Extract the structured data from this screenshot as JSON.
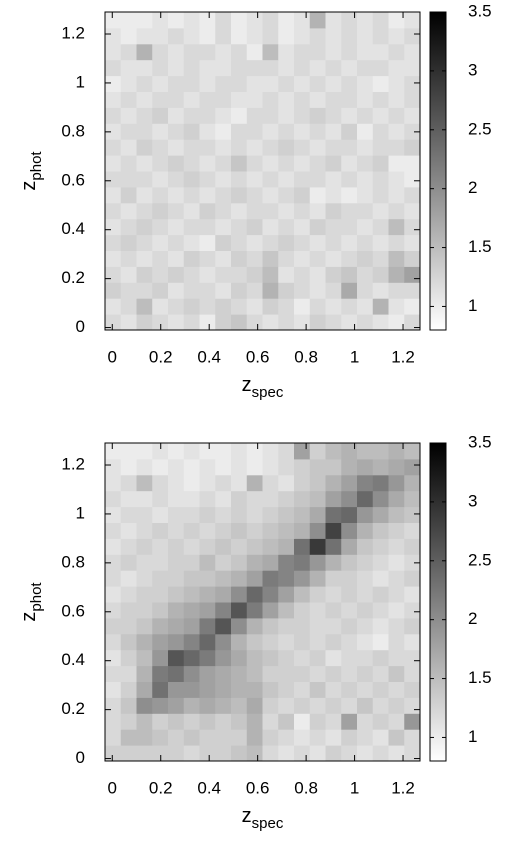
{
  "chart_data": [
    {
      "type": "heatmap",
      "xlabel": {
        "main": "z",
        "sub": "spec"
      },
      "ylabel": {
        "main": "z",
        "sub": "phot"
      },
      "xlim": [
        -0.03,
        1.27
      ],
      "ylim": [
        -0.01,
        1.29
      ],
      "xticks": [
        0,
        0.2,
        0.4,
        0.6,
        0.8,
        1,
        1.2
      ],
      "yticks": [
        0,
        0.2,
        0.4,
        0.6,
        0.8,
        1,
        1.2
      ],
      "clim": [
        0.8,
        3.5
      ],
      "cticks": [
        1,
        1.5,
        2,
        2.5,
        3,
        3.5
      ],
      "color_low": "#ffffff",
      "color_high": "#000000",
      "xbins": [
        -0.03,
        0.035,
        0.1,
        0.165,
        0.23,
        0.295,
        0.36,
        0.425,
        0.49,
        0.555,
        0.62,
        0.685,
        0.75,
        0.815,
        0.88,
        0.945,
        1.01,
        1.075,
        1.14,
        1.205,
        1.27
      ],
      "ybins": [
        -0.01,
        0.055,
        0.12,
        0.185,
        0.25,
        0.315,
        0.38,
        0.445,
        0.51,
        0.575,
        0.64,
        0.705,
        0.77,
        0.835,
        0.9,
        0.965,
        1.03,
        1.095,
        1.16,
        1.225,
        1.29
      ],
      "values": [
        [
          1.2,
          1.1,
          1.3,
          1.2,
          1.1,
          1.2,
          1.0,
          1.3,
          1.4,
          1.2,
          1.1,
          1.2,
          1.1,
          1.3,
          1.2,
          1.1,
          1.2,
          1.1,
          1.0,
          1.2
        ],
        [
          1.1,
          1.2,
          1.5,
          1.1,
          1.2,
          1.3,
          1.2,
          1.3,
          1.2,
          1.1,
          1.3,
          1.2,
          1.0,
          1.2,
          1.1,
          1.2,
          1.1,
          1.6,
          1.1,
          1.0
        ],
        [
          1.3,
          1.2,
          1.2,
          1.3,
          1.1,
          1.2,
          1.2,
          1.1,
          1.3,
          1.2,
          1.6,
          1.3,
          1.2,
          1.1,
          1.2,
          1.7,
          1.2,
          1.1,
          1.2,
          1.2
        ],
        [
          1.2,
          1.1,
          1.3,
          1.2,
          1.3,
          1.2,
          1.1,
          1.2,
          1.2,
          1.3,
          1.5,
          1.1,
          1.2,
          1.1,
          1.3,
          1.4,
          1.2,
          1.3,
          1.6,
          1.8
        ],
        [
          1.1,
          1.2,
          1.1,
          1.2,
          1.1,
          1.3,
          1.2,
          1.1,
          1.3,
          1.2,
          1.4,
          1.2,
          1.1,
          1.2,
          1.1,
          1.2,
          1.3,
          1.2,
          1.5,
          1.3
        ],
        [
          1.2,
          1.3,
          1.2,
          1.1,
          1.2,
          1.1,
          1.0,
          1.3,
          1.2,
          1.1,
          1.2,
          1.3,
          1.2,
          1.1,
          1.2,
          1.1,
          1.2,
          1.1,
          1.2,
          1.1
        ],
        [
          1.1,
          1.2,
          1.3,
          1.2,
          1.1,
          1.2,
          1.2,
          1.1,
          1.2,
          1.3,
          1.1,
          1.2,
          1.1,
          1.3,
          1.2,
          1.2,
          1.1,
          1.2,
          1.5,
          1.2
        ],
        [
          1.2,
          1.1,
          1.2,
          1.3,
          1.2,
          1.1,
          1.3,
          1.2,
          1.1,
          1.2,
          1.2,
          1.1,
          1.2,
          1.1,
          1.3,
          1.2,
          1.2,
          1.1,
          1.2,
          1.1
        ],
        [
          1.1,
          1.3,
          1.1,
          1.2,
          1.1,
          1.2,
          1.1,
          1.2,
          1.3,
          1.2,
          1.1,
          1.2,
          1.3,
          1.0,
          1.1,
          1.0,
          1.1,
          1.2,
          1.1,
          1.2
        ],
        [
          1.2,
          1.2,
          1.2,
          1.1,
          1.2,
          1.3,
          1.2,
          1.1,
          1.2,
          1.1,
          1.2,
          1.1,
          1.2,
          1.2,
          1.1,
          1.2,
          1.1,
          1.2,
          1.1,
          1.0
        ],
        [
          1.1,
          1.2,
          1.1,
          1.2,
          1.3,
          1.2,
          1.1,
          1.2,
          1.4,
          1.2,
          1.1,
          1.2,
          1.1,
          1.2,
          1.3,
          1.1,
          1.2,
          1.3,
          1.0,
          1.0
        ],
        [
          1.2,
          1.1,
          1.3,
          1.2,
          1.1,
          1.2,
          1.2,
          1.1,
          1.2,
          1.1,
          1.2,
          1.3,
          1.2,
          1.1,
          1.2,
          1.2,
          1.1,
          1.2,
          1.2,
          1.3
        ],
        [
          1.1,
          1.2,
          1.2,
          1.1,
          1.2,
          1.3,
          1.1,
          1.0,
          1.2,
          1.2,
          1.1,
          1.2,
          1.1,
          1.2,
          1.1,
          1.3,
          1.0,
          1.2,
          1.1,
          1.2
        ],
        [
          1.2,
          1.1,
          1.2,
          1.3,
          1.1,
          1.2,
          1.2,
          1.1,
          1.0,
          1.2,
          1.2,
          1.1,
          1.2,
          1.3,
          1.2,
          1.1,
          1.2,
          1.1,
          1.2,
          1.1
        ],
        [
          1.1,
          1.2,
          1.1,
          1.2,
          1.2,
          1.1,
          1.2,
          1.2,
          1.1,
          1.1,
          1.2,
          1.1,
          1.2,
          1.1,
          1.2,
          1.2,
          1.1,
          1.2,
          1.1,
          1.2
        ],
        [
          1.0,
          1.1,
          1.2,
          1.1,
          1.2,
          1.2,
          1.1,
          1.2,
          1.2,
          1.1,
          1.1,
          1.2,
          1.1,
          1.2,
          1.1,
          1.2,
          1.1,
          1.0,
          1.1,
          1.2
        ],
        [
          1.2,
          1.1,
          1.1,
          1.2,
          1.1,
          1.2,
          1.1,
          1.1,
          1.2,
          1.2,
          1.2,
          1.1,
          1.2,
          1.1,
          1.2,
          1.1,
          1.2,
          1.2,
          1.1,
          1.1
        ],
        [
          1.1,
          1.2,
          1.6,
          1.2,
          1.1,
          1.2,
          1.2,
          1.1,
          1.2,
          1.0,
          1.5,
          1.1,
          1.2,
          1.2,
          1.1,
          1.2,
          1.1,
          1.1,
          1.2,
          1.1
        ],
        [
          1.1,
          1.0,
          1.1,
          1.1,
          1.2,
          1.1,
          1.0,
          1.2,
          1.0,
          1.1,
          1.2,
          1.0,
          1.1,
          1.2,
          1.1,
          1.2,
          1.1,
          1.2,
          1.1,
          1.2
        ],
        [
          1.0,
          1.0,
          1.0,
          1.1,
          1.0,
          1.1,
          1.0,
          1.2,
          1.0,
          1.1,
          1.2,
          1.0,
          1.1,
          1.6,
          1.1,
          1.2,
          1.1,
          1.2,
          1.0,
          1.1
        ]
      ]
    },
    {
      "type": "heatmap",
      "xlabel": {
        "main": "z",
        "sub": "spec"
      },
      "ylabel": {
        "main": "z",
        "sub": "phot"
      },
      "xlim": [
        -0.03,
        1.27
      ],
      "ylim": [
        -0.01,
        1.29
      ],
      "xticks": [
        0,
        0.2,
        0.4,
        0.6,
        0.8,
        1,
        1.2
      ],
      "yticks": [
        0,
        0.2,
        0.4,
        0.6,
        0.8,
        1,
        1.2
      ],
      "clim": [
        0.8,
        3.5
      ],
      "cticks": [
        1,
        1.5,
        2,
        2.5,
        3,
        3.5
      ],
      "color_low": "#ffffff",
      "color_high": "#000000",
      "xbins": [
        -0.03,
        0.035,
        0.1,
        0.165,
        0.23,
        0.295,
        0.36,
        0.425,
        0.49,
        0.555,
        0.62,
        0.685,
        0.75,
        0.815,
        0.88,
        0.945,
        1.01,
        1.075,
        1.14,
        1.205,
        1.27
      ],
      "ybins": [
        -0.01,
        0.055,
        0.12,
        0.185,
        0.25,
        0.315,
        0.38,
        0.445,
        0.51,
        0.575,
        0.64,
        0.705,
        0.77,
        0.835,
        0.9,
        0.965,
        1.03,
        1.095,
        1.16,
        1.225,
        1.29
      ],
      "values": [
        [
          1.3,
          1.3,
          1.3,
          1.3,
          1.3,
          1.2,
          1.3,
          1.3,
          1.4,
          1.5,
          1.2,
          1.1,
          1.2,
          1.1,
          1.3,
          1.2,
          1.1,
          1.2,
          1.1,
          1.2
        ],
        [
          1.2,
          1.5,
          1.5,
          1.4,
          1.3,
          1.4,
          1.3,
          1.3,
          1.3,
          1.6,
          1.3,
          1.2,
          1.1,
          1.2,
          1.1,
          1.3,
          1.2,
          1.1,
          1.4,
          1.2
        ],
        [
          1.2,
          1.3,
          1.5,
          1.3,
          1.4,
          1.3,
          1.4,
          1.3,
          1.4,
          1.6,
          1.2,
          1.4,
          1.0,
          1.3,
          1.2,
          1.8,
          1.2,
          1.3,
          1.2,
          1.9
        ],
        [
          1.2,
          1.4,
          2.0,
          1.9,
          1.8,
          1.6,
          1.7,
          1.6,
          1.5,
          1.7,
          1.3,
          1.2,
          1.3,
          1.2,
          1.3,
          1.2,
          1.4,
          1.2,
          1.3,
          1.2
        ],
        [
          1.1,
          1.3,
          1.7,
          2.3,
          1.9,
          1.9,
          1.8,
          1.7,
          1.6,
          1.6,
          1.4,
          1.3,
          1.2,
          1.4,
          1.2,
          1.3,
          1.2,
          1.3,
          1.2,
          1.3
        ],
        [
          1.2,
          1.2,
          1.6,
          2.2,
          2.3,
          2.0,
          1.8,
          1.7,
          1.6,
          1.5,
          1.3,
          1.3,
          1.3,
          1.2,
          1.3,
          1.2,
          1.3,
          1.2,
          1.4,
          1.2
        ],
        [
          1.1,
          1.3,
          1.5,
          1.9,
          2.6,
          2.4,
          2.2,
          1.9,
          1.7,
          1.5,
          1.4,
          1.3,
          1.2,
          1.3,
          1.1,
          1.2,
          1.2,
          1.3,
          1.2,
          1.2
        ],
        [
          1.2,
          1.4,
          1.6,
          1.8,
          1.9,
          2.1,
          2.4,
          2.0,
          1.6,
          1.4,
          1.3,
          1.2,
          1.3,
          1.2,
          1.3,
          1.2,
          1.1,
          1.0,
          1.2,
          1.1
        ],
        [
          1.3,
          1.3,
          1.4,
          1.6,
          1.7,
          1.8,
          2.2,
          2.6,
          2.0,
          1.6,
          1.4,
          1.3,
          1.3,
          1.2,
          1.2,
          1.3,
          1.2,
          1.1,
          1.2,
          1.3
        ],
        [
          1.2,
          1.3,
          1.3,
          1.4,
          1.6,
          1.7,
          1.8,
          2.1,
          2.6,
          2.2,
          1.8,
          1.5,
          1.3,
          1.2,
          1.3,
          1.2,
          1.3,
          1.2,
          1.1,
          1.2
        ],
        [
          1.1,
          1.2,
          1.3,
          1.3,
          1.4,
          1.5,
          1.6,
          1.7,
          2.0,
          2.4,
          2.1,
          1.8,
          1.5,
          1.3,
          1.2,
          1.3,
          1.2,
          1.3,
          1.2,
          1.1
        ],
        [
          1.2,
          1.1,
          1.2,
          1.3,
          1.3,
          1.4,
          1.4,
          1.5,
          1.6,
          1.8,
          2.2,
          2.1,
          1.9,
          1.6,
          1.3,
          1.3,
          1.2,
          1.1,
          1.2,
          1.3
        ],
        [
          1.2,
          1.3,
          1.2,
          1.2,
          1.3,
          1.3,
          1.5,
          1.3,
          1.4,
          1.6,
          1.7,
          2.1,
          2.2,
          1.9,
          1.6,
          1.4,
          1.3,
          1.2,
          1.1,
          1.2
        ],
        [
          1.1,
          1.2,
          1.3,
          1.2,
          1.3,
          1.2,
          1.3,
          1.4,
          1.3,
          1.4,
          1.5,
          1.6,
          2.3,
          2.9,
          2.3,
          1.7,
          1.4,
          1.3,
          1.2,
          1.3
        ],
        [
          1.2,
          1.1,
          1.2,
          1.3,
          1.2,
          1.3,
          1.2,
          1.3,
          1.4,
          1.3,
          1.4,
          1.5,
          1.6,
          2.0,
          2.8,
          2.0,
          1.6,
          1.4,
          1.3,
          1.2
        ],
        [
          1.1,
          1.2,
          1.2,
          1.1,
          1.2,
          1.2,
          1.3,
          1.2,
          1.3,
          1.2,
          1.3,
          1.4,
          1.5,
          1.7,
          2.3,
          2.4,
          1.9,
          1.7,
          1.5,
          1.4
        ],
        [
          1.2,
          1.1,
          1.1,
          1.2,
          1.1,
          1.1,
          1.2,
          1.1,
          1.3,
          1.2,
          1.2,
          1.3,
          1.4,
          1.5,
          1.8,
          2.0,
          2.4,
          2.0,
          1.7,
          1.5
        ],
        [
          1.1,
          1.2,
          1.5,
          1.2,
          1.1,
          1.0,
          1.1,
          1.2,
          1.1,
          1.6,
          1.2,
          1.1,
          1.3,
          1.4,
          1.6,
          1.8,
          2.1,
          2.2,
          1.9,
          1.6
        ],
        [
          1.1,
          1.0,
          1.1,
          1.0,
          1.1,
          1.0,
          1.1,
          1.0,
          1.1,
          1.0,
          1.1,
          1.2,
          1.3,
          1.4,
          1.4,
          1.6,
          1.7,
          1.6,
          1.7,
          1.8
        ],
        [
          1.0,
          1.0,
          1.0,
          1.1,
          1.0,
          1.1,
          1.0,
          1.0,
          1.1,
          1.0,
          1.1,
          1.2,
          1.8,
          1.3,
          1.5,
          1.6,
          1.5,
          1.5,
          1.6,
          1.5
        ]
      ]
    }
  ]
}
